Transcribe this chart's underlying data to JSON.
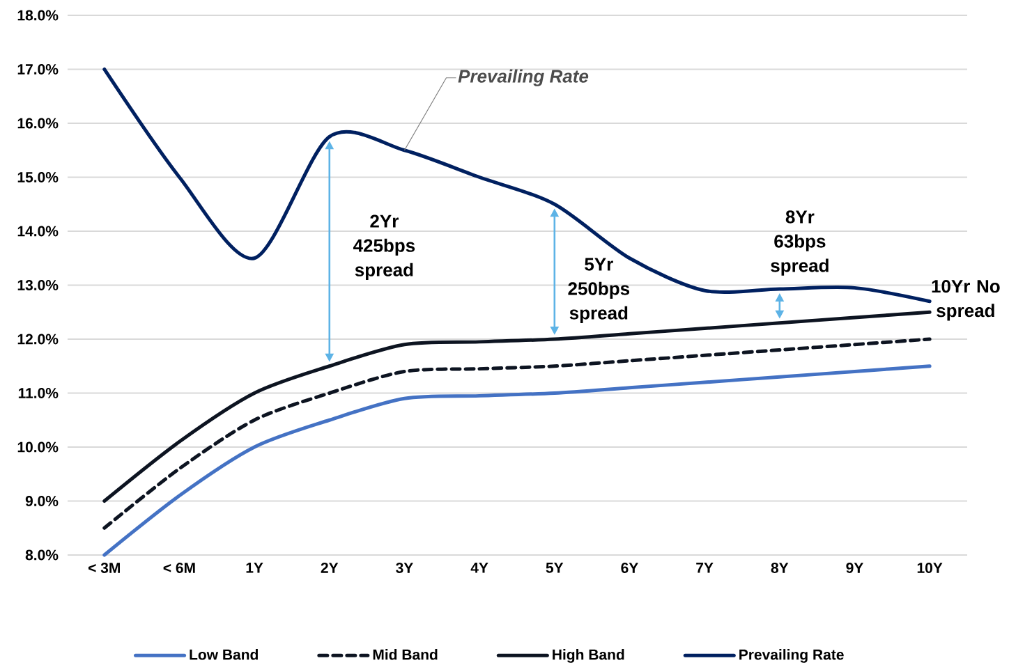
{
  "chart_data": {
    "type": "line",
    "categories": [
      "< 3M",
      "< 6M",
      "1Y",
      "2Y",
      "3Y",
      "4Y",
      "5Y",
      "6Y",
      "7Y",
      "8Y",
      "9Y",
      "10Y"
    ],
    "series": [
      {
        "name": "Low Band",
        "color": "#4472c4",
        "line_style": "solid",
        "values": [
          8.0,
          9.1,
          10.0,
          10.5,
          10.9,
          10.95,
          11.0,
          11.1,
          11.2,
          11.3,
          11.4,
          11.5
        ]
      },
      {
        "name": "Mid Band",
        "color": "#0d1421",
        "line_style": "dashed",
        "values": [
          8.5,
          9.6,
          10.5,
          11.0,
          11.4,
          11.45,
          11.5,
          11.6,
          11.7,
          11.8,
          11.9,
          12.0
        ]
      },
      {
        "name": "High Band",
        "color": "#0d1421",
        "line_style": "solid",
        "values": [
          9.0,
          10.1,
          11.0,
          11.5,
          11.9,
          11.95,
          12.0,
          12.1,
          12.2,
          12.3,
          12.4,
          12.5
        ]
      },
      {
        "name": "Prevailing Rate",
        "color": "#002060",
        "line_style": "solid",
        "values": [
          17.0,
          15.0,
          13.5,
          15.75,
          15.5,
          15.0,
          14.5,
          13.5,
          12.9,
          12.93,
          12.95,
          12.7
        ]
      }
    ],
    "ylim": [
      8.0,
      18.0
    ],
    "yticks": [
      {
        "value": 8,
        "label": "8.0%"
      },
      {
        "value": 9,
        "label": "9.0%"
      },
      {
        "value": 10,
        "label": "10.0%"
      },
      {
        "value": 11,
        "label": "11.0%"
      },
      {
        "value": 12,
        "label": "12.0%"
      },
      {
        "value": 13,
        "label": "13.0%"
      },
      {
        "value": 14,
        "label": "14.0%"
      },
      {
        "value": 15,
        "label": "15.0%"
      },
      {
        "value": 16,
        "label": "16.0%"
      },
      {
        "value": 17,
        "label": "17.0%"
      },
      {
        "value": 18,
        "label": "18.0%"
      }
    ],
    "grid": "y",
    "legend": "bottom",
    "marker": "none",
    "annotations": [
      {
        "text": "Prevailing Rate",
        "x": "3Y",
        "y": 15.5
      },
      "2Yr 425bps spread",
      "5Yr 250bps spread",
      "8Yr 63bps spread",
      "10Yr No spread"
    ]
  }
}
